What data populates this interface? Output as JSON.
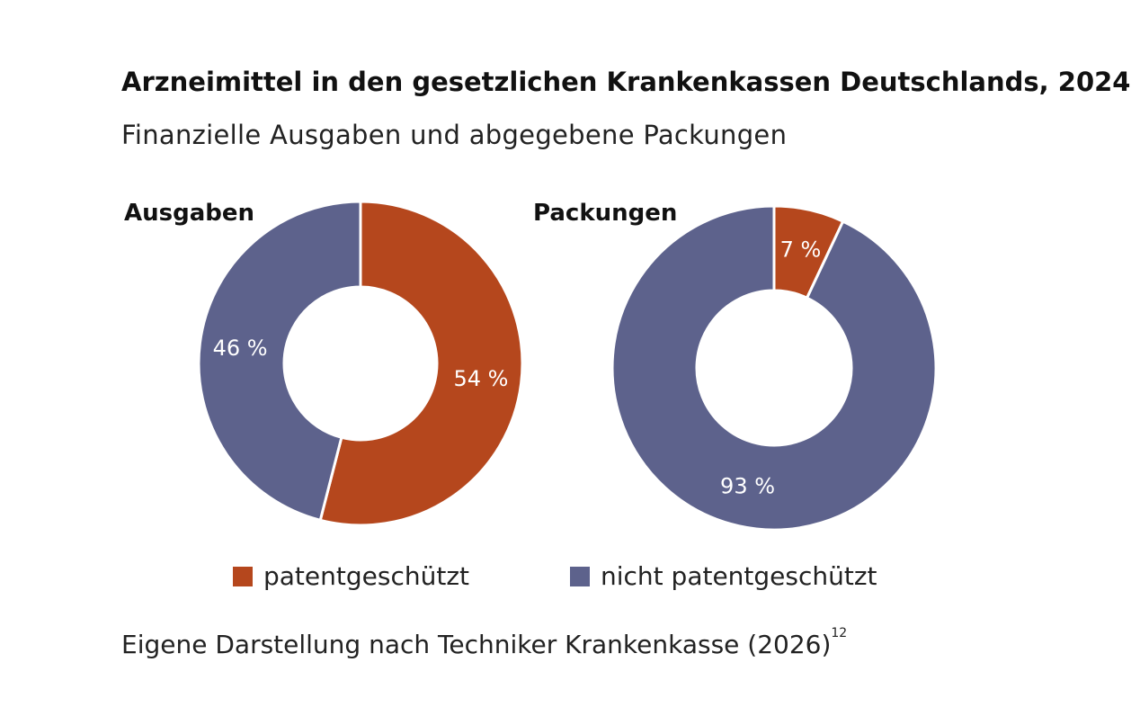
{
  "title": "Arzneimittel in den gesetzlichen Krankenkassen Deutschlands, 2024",
  "subtitle": "Finanzielle Ausgaben und abgegebene Packungen",
  "source": {
    "text": "Eigene Darstellung nach Techniker Krankenkasse (2026)",
    "footnote": "12"
  },
  "legend": [
    {
      "label": "patentgeschützt",
      "color": "#b5471d"
    },
    {
      "label": "nicht patentgeschützt",
      "color": "#5d628c"
    }
  ],
  "chart_data": [
    {
      "type": "pie",
      "variant": "donut",
      "title": "Ausgaben",
      "slices": [
        {
          "name": "patentgeschützt",
          "value": 54,
          "label": "54 %",
          "color": "#b5471d"
        },
        {
          "name": "nicht patentgeschützt",
          "value": 46,
          "label": "46 %",
          "color": "#5d628c"
        }
      ]
    },
    {
      "type": "pie",
      "variant": "donut",
      "title": "Packungen",
      "slices": [
        {
          "name": "patentgeschützt",
          "value": 7,
          "label": "7 %",
          "color": "#b5471d"
        },
        {
          "name": "nicht patentgeschützt",
          "value": 93,
          "label": "93 %",
          "color": "#5d628c"
        }
      ]
    }
  ]
}
